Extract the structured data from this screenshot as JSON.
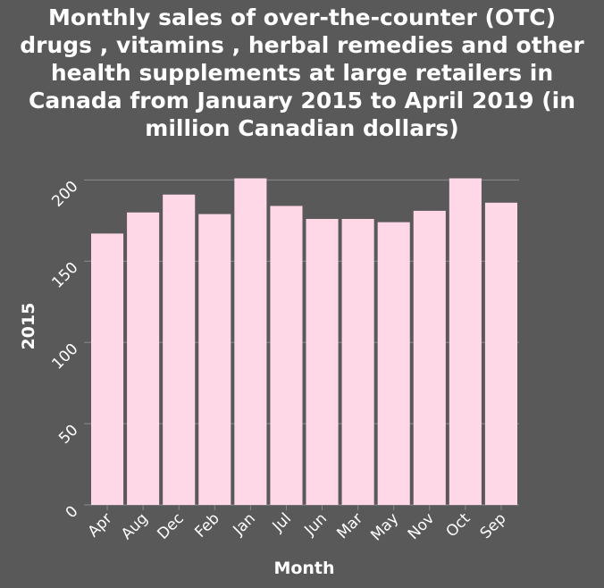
{
  "chart_data": {
    "type": "bar",
    "title": "Monthly sales of over-the-counter (OTC) drugs , vitamins , herbal remedies and other health supplements at large retailers in Canada from January 2015 to April 2019 (in million Canadian dollars)",
    "title_lines": [
      "Monthly sales of over-the-counter (OTC)",
      "drugs , vitamins , herbal remedies and other",
      "health supplements at large retailers in",
      "Canada from January 2015 to April 2019 (in",
      "million Canadian dollars)"
    ],
    "xlabel": "Month",
    "ylabel": "2015",
    "categories": [
      "Apr",
      "Aug",
      "Dec",
      "Feb",
      "Jan",
      "Jul",
      "Jun",
      "Mar",
      "May",
      "Nov",
      "Oct",
      "Sep"
    ],
    "values": [
      167,
      180,
      191,
      179,
      201,
      184,
      176,
      176,
      174,
      181,
      201,
      186
    ],
    "ylim": [
      0,
      220
    ],
    "yticks": [
      0,
      50,
      100,
      150,
      200
    ],
    "grid": true,
    "legend": "none",
    "colors": {
      "bar": "#ffd8e8",
      "background": "#595959",
      "plot_background": "#595959",
      "grid": "#8a8a8a",
      "text": "#ffffff"
    }
  }
}
